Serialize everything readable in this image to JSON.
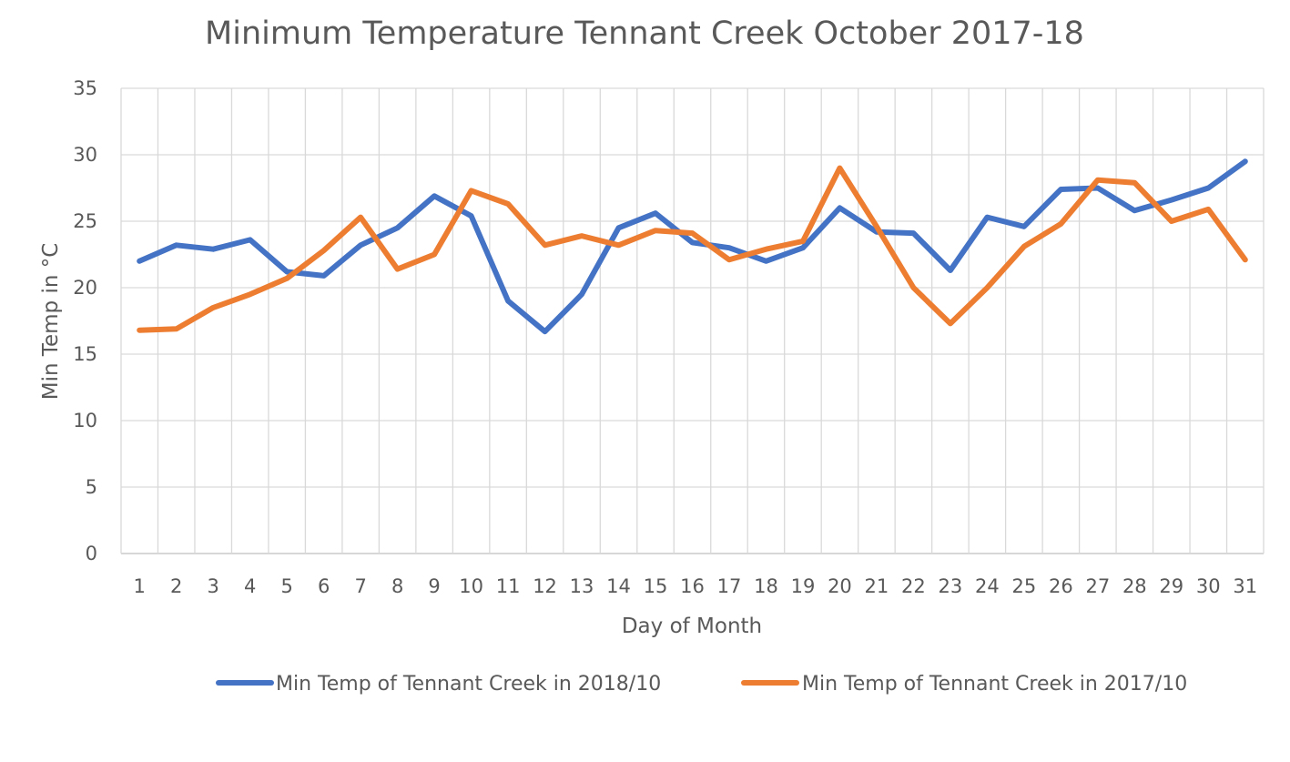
{
  "chart_data": {
    "type": "line",
    "title": "Minimum Temperature Tennant Creek October 2017-18",
    "xlabel": "Day of Month",
    "ylabel": "Min Temp in °C",
    "ylim": [
      0,
      35
    ],
    "yticks": [
      0,
      5,
      10,
      15,
      20,
      25,
      30,
      35
    ],
    "grid": true,
    "legend_position": "bottom",
    "categories": [
      "1",
      "2",
      "3",
      "4",
      "5",
      "6",
      "7",
      "8",
      "9",
      "10",
      "11",
      "12",
      "13",
      "14",
      "15",
      "16",
      "17",
      "18",
      "19",
      "20",
      "21",
      "22",
      "23",
      "24",
      "25",
      "26",
      "27",
      "28",
      "29",
      "30",
      "31"
    ],
    "series": [
      {
        "name": "Min Temp of Tennant Creek in 2018/10",
        "color": "#4472c4",
        "values": [
          22.0,
          23.2,
          22.9,
          23.6,
          21.2,
          20.9,
          23.2,
          24.5,
          26.9,
          25.4,
          19.0,
          16.7,
          19.5,
          24.5,
          25.6,
          23.4,
          23.0,
          22.0,
          23.0,
          26.0,
          24.2,
          24.1,
          21.3,
          25.3,
          24.6,
          27.4,
          27.5,
          25.8,
          26.6,
          27.5,
          29.5
        ]
      },
      {
        "name": "Min Temp of Tennant Creek in 2017/10",
        "color": "#ed7d31",
        "values": [
          16.8,
          16.9,
          18.5,
          19.5,
          20.7,
          22.8,
          25.3,
          21.4,
          22.5,
          27.3,
          26.3,
          23.2,
          23.9,
          23.2,
          24.3,
          24.1,
          22.1,
          22.9,
          23.5,
          29.0,
          24.6,
          20.0,
          17.3,
          20.0,
          23.1,
          24.8,
          28.1,
          27.9,
          25.0,
          25.9,
          22.1
        ]
      }
    ]
  }
}
